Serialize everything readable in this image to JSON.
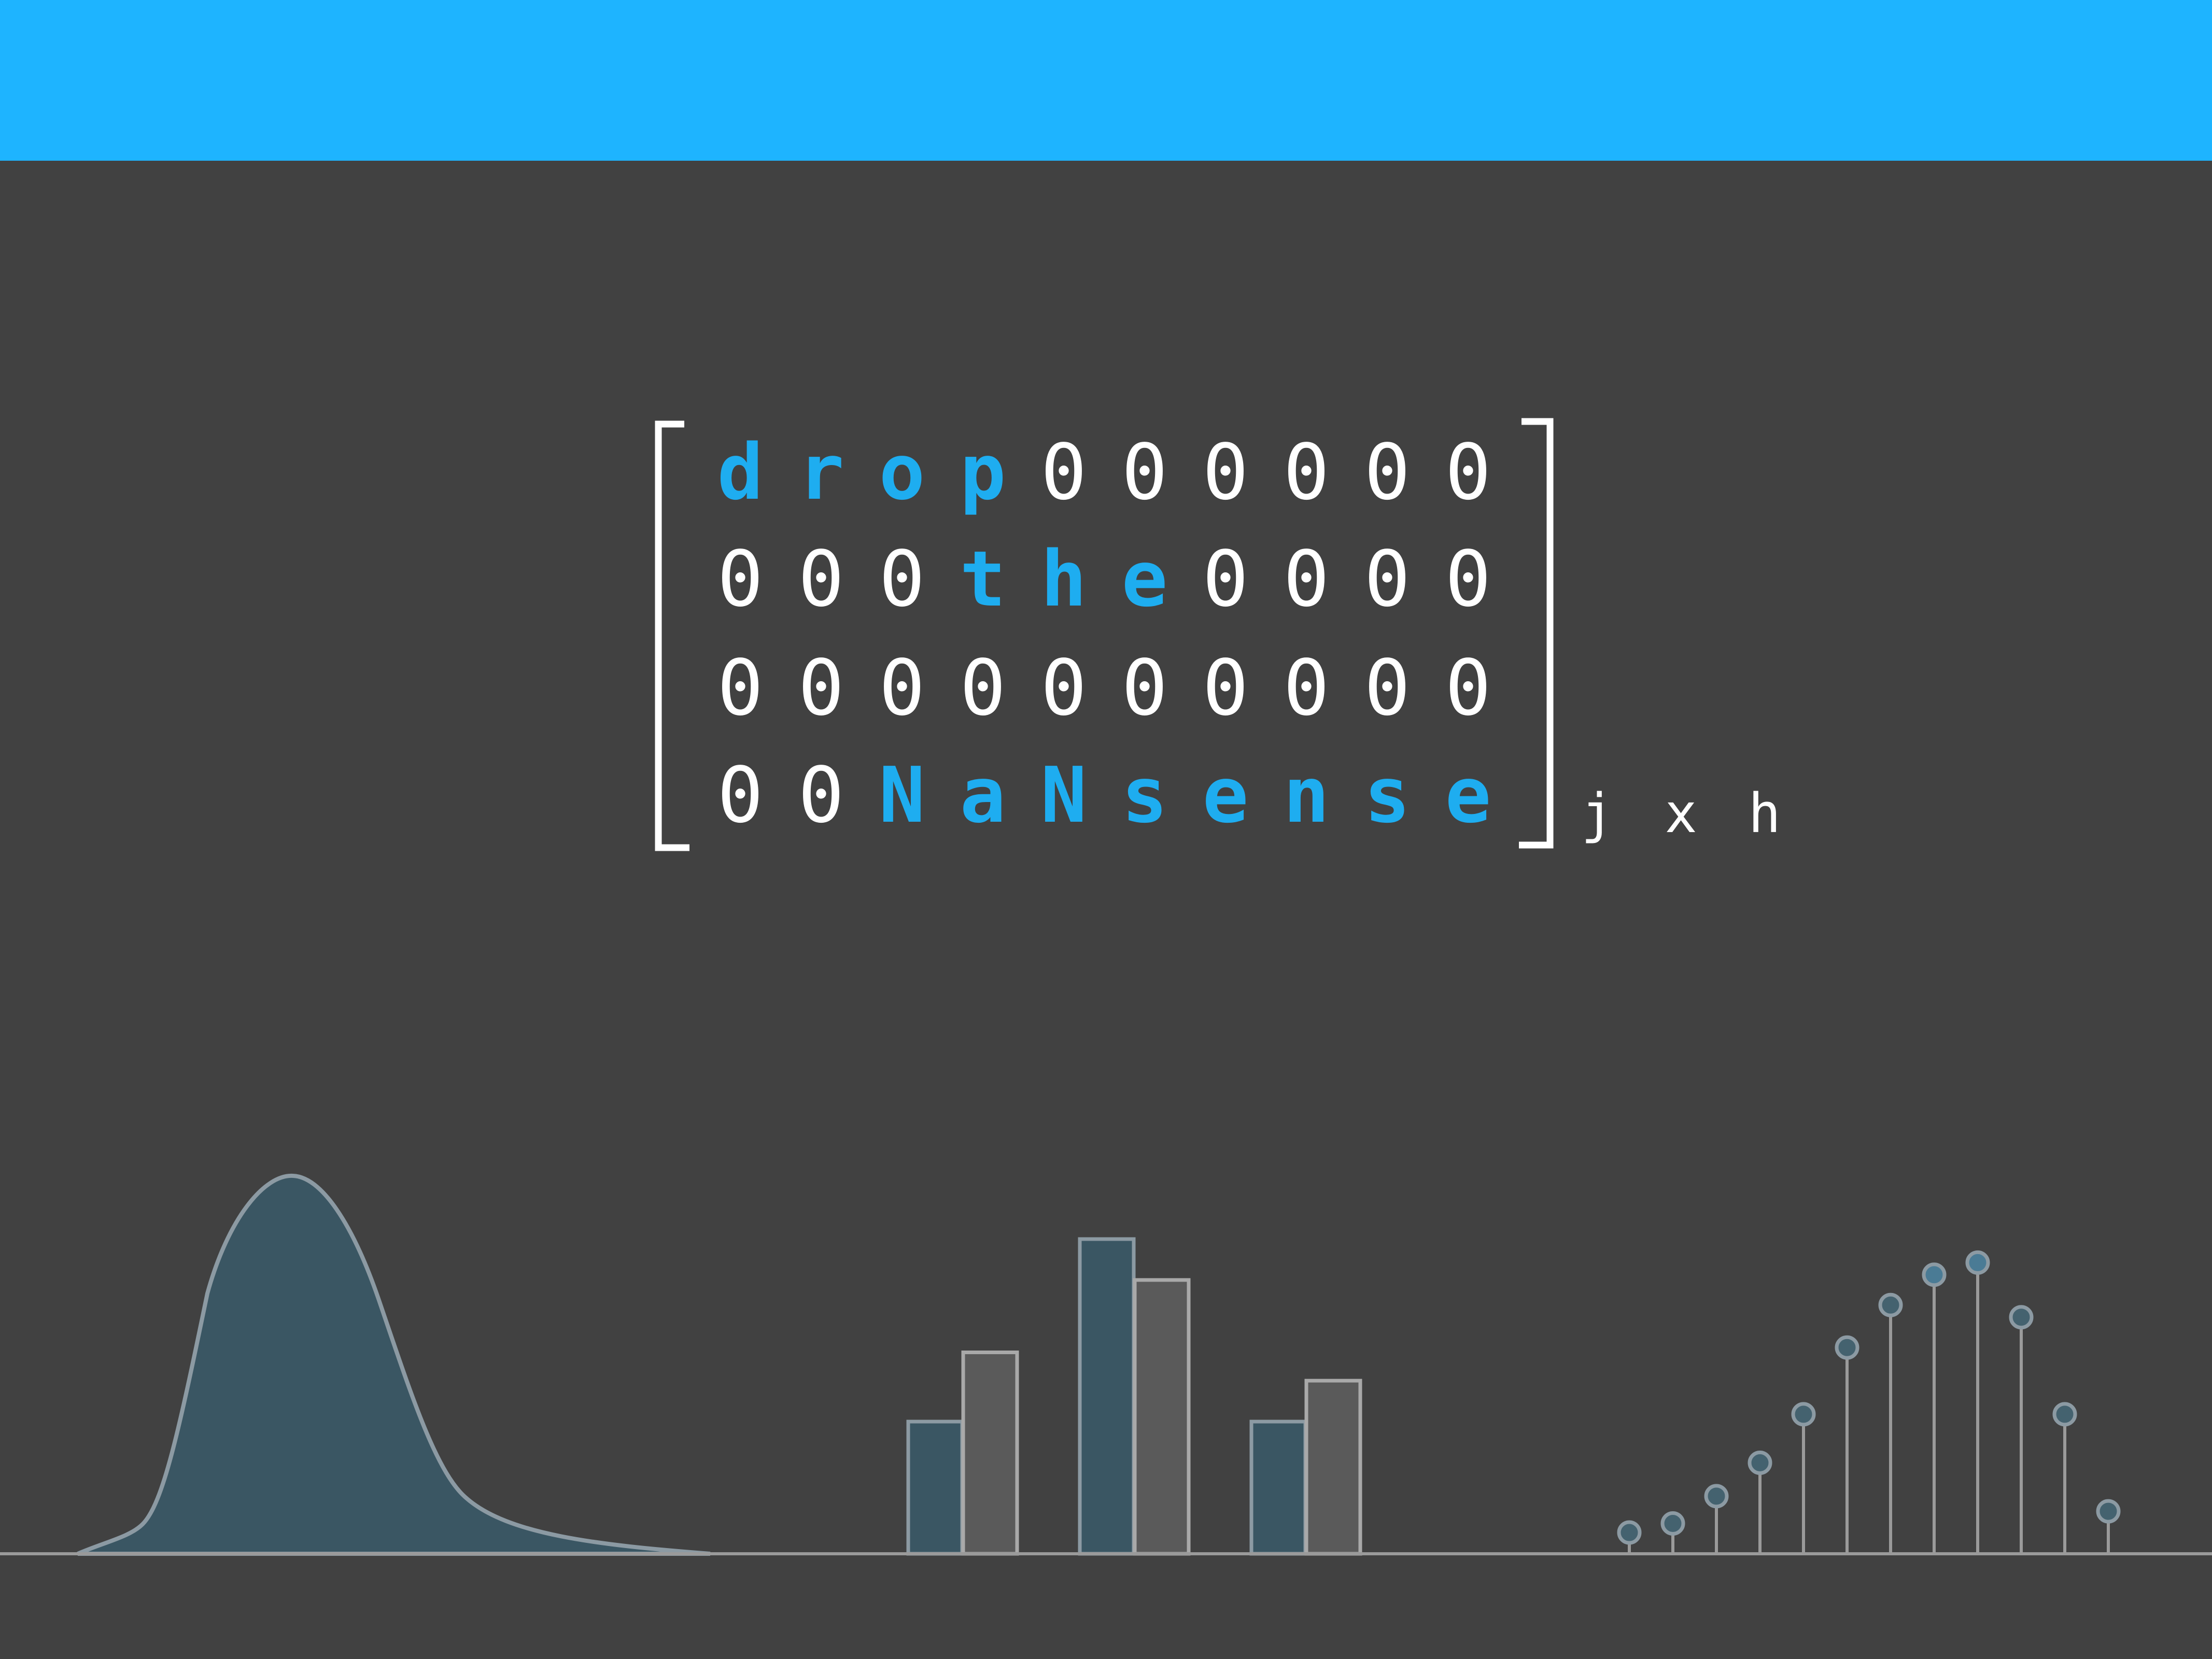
{
  "colors": {
    "header": "#1eb4ff",
    "background": "#414141",
    "highlight": "#1eadf0",
    "matrix_text": "#ffffff",
    "dark_teal": "#3a5663",
    "grey": "#5a5a5a",
    "outline": "#8c9aa3",
    "axis": "#9a9a9a",
    "dot_fill": "#4a7b95"
  },
  "matrix": {
    "rows": [
      [
        {
          "t": "d",
          "hl": true
        },
        {
          "t": "r",
          "hl": true
        },
        {
          "t": "o",
          "hl": true
        },
        {
          "t": "p",
          "hl": true
        },
        {
          "t": "0",
          "hl": false
        },
        {
          "t": "0",
          "hl": false
        },
        {
          "t": "0",
          "hl": false
        },
        {
          "t": "0",
          "hl": false
        },
        {
          "t": "0",
          "hl": false
        },
        {
          "t": "0",
          "hl": false
        }
      ],
      [
        {
          "t": "0",
          "hl": false
        },
        {
          "t": "0",
          "hl": false
        },
        {
          "t": "0",
          "hl": false
        },
        {
          "t": "t",
          "hl": true
        },
        {
          "t": "h",
          "hl": true
        },
        {
          "t": "e",
          "hl": true
        },
        {
          "t": "0",
          "hl": false
        },
        {
          "t": "0",
          "hl": false
        },
        {
          "t": "0",
          "hl": false
        },
        {
          "t": "0",
          "hl": false
        }
      ],
      [
        {
          "t": "0",
          "hl": false
        },
        {
          "t": "0",
          "hl": false
        },
        {
          "t": "0",
          "hl": false
        },
        {
          "t": "0",
          "hl": false
        },
        {
          "t": "0",
          "hl": false
        },
        {
          "t": "0",
          "hl": false
        },
        {
          "t": "0",
          "hl": false
        },
        {
          "t": "0",
          "hl": false
        },
        {
          "t": "0",
          "hl": false
        },
        {
          "t": "0",
          "hl": false
        }
      ],
      [
        {
          "t": "0",
          "hl": false
        },
        {
          "t": "0",
          "hl": false
        },
        {
          "t": "N",
          "hl": true
        },
        {
          "t": "a",
          "hl": true
        },
        {
          "t": "N",
          "hl": true
        },
        {
          "t": "s",
          "hl": true
        },
        {
          "t": "e",
          "hl": true
        },
        {
          "t": "n",
          "hl": true
        },
        {
          "t": "s",
          "hl": true
        },
        {
          "t": "e",
          "hl": true
        }
      ]
    ],
    "subscript": "j x h"
  },
  "decor": {
    "bar_pairs": [
      [
        0.42,
        0.64
      ],
      [
        1.0,
        0.87
      ],
      [
        0.42,
        0.55
      ]
    ],
    "stems": [
      0.07,
      0.1,
      0.19,
      0.3,
      0.46,
      0.68,
      0.82,
      0.92,
      0.96,
      0.78,
      0.46,
      0.14
    ]
  }
}
